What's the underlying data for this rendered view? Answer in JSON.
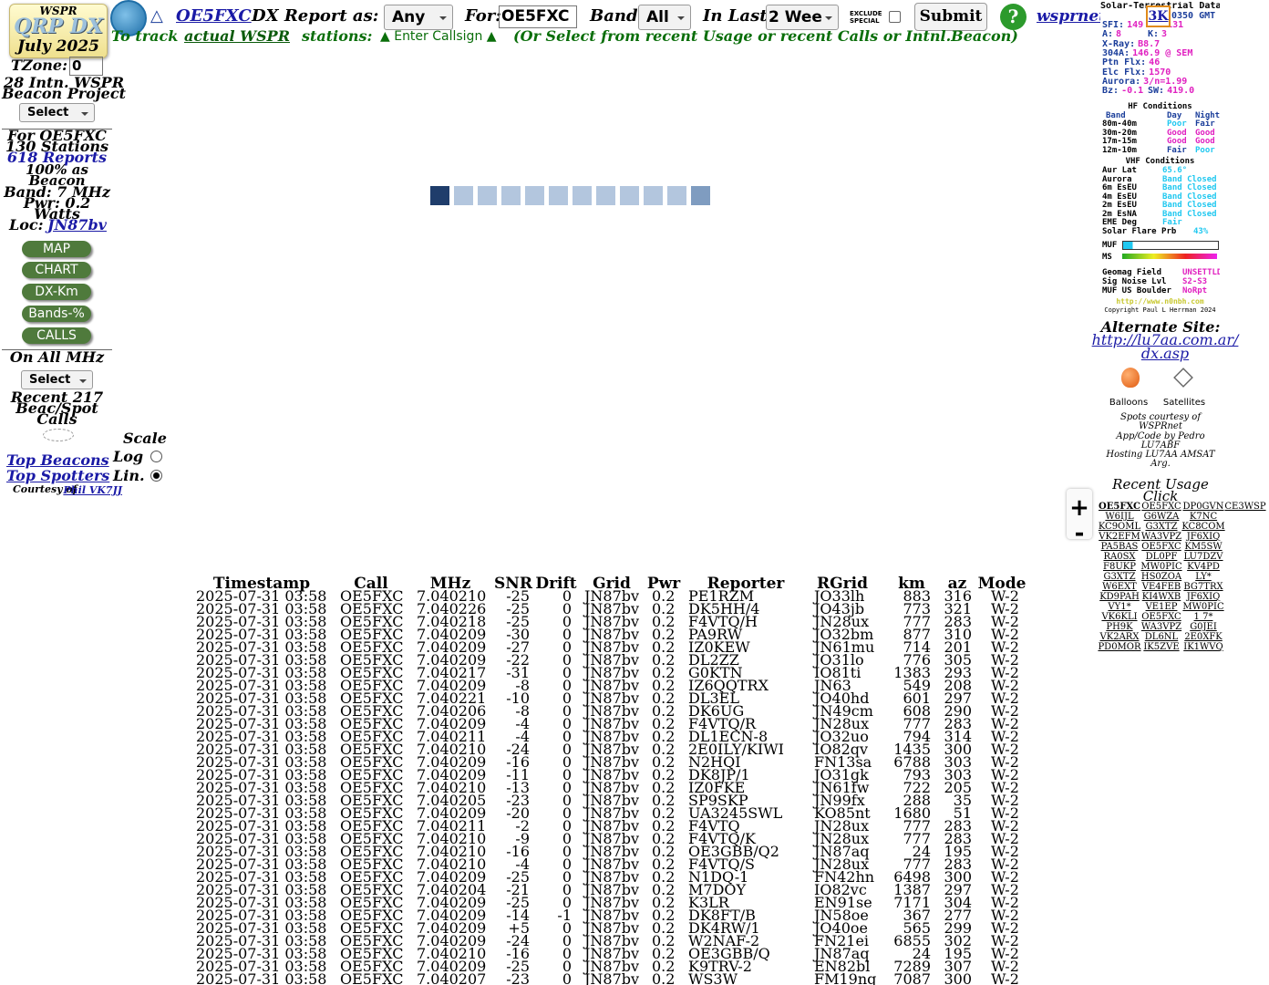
{
  "header": {
    "logo": {
      "top": "WSPR",
      "title": "QRP DX",
      "date": "July 2025"
    },
    "triangle": "△",
    "call_link": "OE5FXC",
    "report_label": "DX Report as:",
    "report_select": "Any",
    "for_label": "For:",
    "for_input": "OE5FXC",
    "band_label": "Band:",
    "band_select": "All",
    "last_label": "In Last:",
    "last_select": "2 Wee",
    "exclude_label": "EXCLUDE SPECIAL",
    "submit": "Submit",
    "help": "?",
    "site_link": "wsprnet.org",
    "badge": "3K"
  },
  "subheader": {
    "lead": "To track",
    "link": "actual WSPR",
    "stations": "stations:",
    "hint": "▲ Enter Callsign ▲",
    "note": "(Or Select from recent Usage or recent Calls or Intnl.Beacon)"
  },
  "sidebar": {
    "tzone_label": "TZone:",
    "tzone_value": "0",
    "beacon_project": "28 Intn. WSPR Beacon Project",
    "select1": "Select",
    "for_call": "For OE5FXC",
    "stations": "130 Stations",
    "reports": "618 Reports",
    "beacon_pct": "100% as Beacon",
    "band": "Band: 7 MHz",
    "pwr": "Pwr: 0.2 Watts",
    "loc_label": "Loc:",
    "loc_link": "JN87bv",
    "buttons": [
      "MAP",
      "CHART",
      "DX-Km",
      "Bands-%",
      "CALLS"
    ],
    "all_mhz": "On All MHz",
    "select2": "Select",
    "recent_calls": "Recent 217 Beac/Spot Calls",
    "scale": "Scale",
    "log": "Log",
    "lin": "Lin.",
    "top_beacons": "Top Beacons",
    "top_spotters": "Top Spotters",
    "courtesy": "Courtesy of",
    "courtesy_link": "Phil VK7JJ"
  },
  "solar": {
    "title": "Solar-Terrestrial Data",
    "time": "0350 GMT",
    "values": [
      [
        "SFI:",
        "149"
      ],
      [
        "SN:",
        "131"
      ],
      [
        "A:",
        "8"
      ],
      [
        "K:",
        "3"
      ],
      [
        "X-Ray:",
        "B8.7"
      ],
      [
        "304A:",
        "146.9 @ SEM"
      ],
      [
        "Ptn Flx:",
        "46"
      ],
      [
        "Elc Flx:",
        "1570"
      ],
      [
        "Aurora:",
        "3/n=1.99"
      ],
      [
        "Bz:",
        "-0.1"
      ],
      [
        "SW:",
        "419.0"
      ]
    ],
    "hf_title": "HF Conditions",
    "hf_header": [
      "Band",
      "Day",
      "Night"
    ],
    "hf_rows": [
      [
        "80m-40m",
        "Poor",
        "Fair"
      ],
      [
        "30m-20m",
        "Good",
        "Good"
      ],
      [
        "17m-15m",
        "Good",
        "Good"
      ],
      [
        "12m-10m",
        "Fair",
        "Poor"
      ]
    ],
    "vhf_title": "VHF Conditions",
    "vhf_rows": [
      [
        "Aur Lat",
        "65.6°"
      ],
      [
        "Aurora",
        "Band Closed"
      ],
      [
        "6m EsEU",
        "Band Closed"
      ],
      [
        "4m EsEU",
        "Band Closed"
      ],
      [
        "2m EsEU",
        "Band Closed"
      ],
      [
        "2m EsNA",
        "Band Closed"
      ],
      [
        "EME Deg",
        "Fair"
      ],
      [
        "Solar Flare Prb",
        "43%"
      ]
    ],
    "muf": "MUF",
    "ms": "MS",
    "geo_rows": [
      [
        "Geomag Field",
        "UNSETTLD"
      ],
      [
        "Sig Noise Lvl",
        "S2-S3"
      ],
      [
        "MUF US Boulder",
        "NoRpt"
      ]
    ],
    "url": "http://www.n0nbh.com",
    "copyright": "Copyright Paul L Herrman 2024"
  },
  "right": {
    "alternate": "Alternate Site:",
    "alt_link": "http://lu7aa.com.ar/dx.asp",
    "balloons": "Balloons",
    "satellites": "Satellites",
    "credits": [
      "Spots courtesy of WSPRnet",
      "App/Code by Pedro LU7ABF",
      "Hosting LU7AA AMSAT Arg."
    ],
    "recent_usage": "Recent Usage",
    "click": "Click",
    "usage": [
      [
        "OE5FXC",
        "OE5FXC",
        "DP0GVN",
        "CE3WSP"
      ],
      [
        "W6IJL",
        "G6WZA",
        "K7NC"
      ],
      [
        "KC9OML",
        "G3XTZ",
        "KC8COM"
      ],
      [
        "VK2EFM",
        "WA3VPZ",
        "JF6XIQ"
      ],
      [
        "PA5BAS",
        "OE5FXC",
        "KM5SW"
      ],
      [
        "RA0SX",
        "DL0PF",
        "LU7DZV"
      ],
      [
        "F8UKP",
        "MW0PIC",
        "KV4PD"
      ],
      [
        "G3XTZ",
        "HS0ZOA",
        "LY*"
      ],
      [
        "W6EXT",
        "VE4FEB",
        "BG7TRX"
      ],
      [
        "KD9PAH",
        "KI4WXB",
        "JF6XIQ"
      ],
      [
        "VY1*",
        "VE1EP",
        "MW0PIC"
      ],
      [
        "VK6KLI",
        "OE5FXC",
        "1 7*"
      ],
      [
        "PH9K",
        "WA3VPZ",
        "G0JEI"
      ],
      [
        "VK2ARX",
        "DL6NL",
        "2E0XFK"
      ],
      [
        "PD0MOR",
        "IK5ZVE",
        "IK1WVQ"
      ]
    ]
  },
  "zoom": {
    "in": "+",
    "out": "-"
  },
  "table": {
    "columns": [
      "Timestamp",
      "Call",
      "MHz",
      "SNR",
      "Drift",
      "Grid",
      "Pwr",
      "Reporter",
      "RGrid",
      "km",
      "az",
      "Mode"
    ],
    "rows": [
      [
        "2025-07-31 03:58",
        "OE5FXC",
        "7.040210",
        "-25",
        "0",
        "JN87bv",
        "0.2",
        "PE1RZM",
        "JO33lh",
        "883",
        "316",
        "W-2"
      ],
      [
        "2025-07-31 03:58",
        "OE5FXC",
        "7.040226",
        "-25",
        "0",
        "JN87bv",
        "0.2",
        "DK5HH/4",
        "JO43jb",
        "773",
        "321",
        "W-2"
      ],
      [
        "2025-07-31 03:58",
        "OE5FXC",
        "7.040218",
        "-25",
        "0",
        "JN87bv",
        "0.2",
        "F4VTQ/H",
        "JN28ux",
        "777",
        "283",
        "W-2"
      ],
      [
        "2025-07-31 03:58",
        "OE5FXC",
        "7.040209",
        "-30",
        "0",
        "JN87bv",
        "0.2",
        "PA9RW",
        "JO32bm",
        "877",
        "310",
        "W-2"
      ],
      [
        "2025-07-31 03:58",
        "OE5FXC",
        "7.040209",
        "-27",
        "0",
        "JN87bv",
        "0.2",
        "IZ0KEW",
        "JN61mu",
        "714",
        "201",
        "W-2"
      ],
      [
        "2025-07-31 03:58",
        "OE5FXC",
        "7.040209",
        "-22",
        "0",
        "JN87bv",
        "0.2",
        "DL2ZZ",
        "JO31lo",
        "776",
        "305",
        "W-2"
      ],
      [
        "2025-07-31 03:58",
        "OE5FXC",
        "7.040217",
        "-31",
        "0",
        "JN87bv",
        "0.2",
        "G0KTN",
        "IO81ti",
        "1383",
        "293",
        "W-2"
      ],
      [
        "2025-07-31 03:58",
        "OE5FXC",
        "7.040209",
        "-8",
        "0",
        "JN87bv",
        "0.2",
        "IZ6QQTRX",
        "JN63",
        "549",
        "208",
        "W-2"
      ],
      [
        "2025-07-31 03:58",
        "OE5FXC",
        "7.040221",
        "-10",
        "0",
        "JN87bv",
        "0.2",
        "DL3EL",
        "JO40hd",
        "601",
        "297",
        "W-2"
      ],
      [
        "2025-07-31 03:58",
        "OE5FXC",
        "7.040206",
        "-8",
        "0",
        "JN87bv",
        "0.2",
        "DK6UG",
        "JN49cm",
        "608",
        "290",
        "W-2"
      ],
      [
        "2025-07-31 03:58",
        "OE5FXC",
        "7.040209",
        "-4",
        "0",
        "JN87bv",
        "0.2",
        "F4VTQ/R",
        "JN28ux",
        "777",
        "283",
        "W-2"
      ],
      [
        "2025-07-31 03:58",
        "OE5FXC",
        "7.040211",
        "-4",
        "0",
        "JN87bv",
        "0.2",
        "DL1ECN-8",
        "JO32uo",
        "794",
        "314",
        "W-2"
      ],
      [
        "2025-07-31 03:58",
        "OE5FXC",
        "7.040210",
        "-24",
        "0",
        "JN87bv",
        "0.2",
        "2E0ILY/KIWI",
        "IO82qv",
        "1435",
        "300",
        "W-2"
      ],
      [
        "2025-07-31 03:58",
        "OE5FXC",
        "7.040209",
        "-16",
        "0",
        "JN87bv",
        "0.2",
        "N2HQI",
        "FN13sa",
        "6788",
        "303",
        "W-2"
      ],
      [
        "2025-07-31 03:58",
        "OE5FXC",
        "7.040209",
        "-11",
        "0",
        "JN87bv",
        "0.2",
        "DK8JP/1",
        "JO31gk",
        "793",
        "303",
        "W-2"
      ],
      [
        "2025-07-31 03:58",
        "OE5FXC",
        "7.040210",
        "-13",
        "0",
        "JN87bv",
        "0.2",
        "IZ0FKE",
        "JN61fw",
        "722",
        "205",
        "W-2"
      ],
      [
        "2025-07-31 03:58",
        "OE5FXC",
        "7.040205",
        "-23",
        "0",
        "JN87bv",
        "0.2",
        "SP9SKP",
        "JN99fx",
        "288",
        "35",
        "W-2"
      ],
      [
        "2025-07-31 03:58",
        "OE5FXC",
        "7.040209",
        "-20",
        "0",
        "JN87bv",
        "0.2",
        "UA3245SWL",
        "KO85nt",
        "1680",
        "51",
        "W-2"
      ],
      [
        "2025-07-31 03:58",
        "OE5FXC",
        "7.040211",
        "-2",
        "0",
        "JN87bv",
        "0.2",
        "F4VTQ",
        "JN28ux",
        "777",
        "283",
        "W-2"
      ],
      [
        "2025-07-31 03:58",
        "OE5FXC",
        "7.040210",
        "-9",
        "0",
        "JN87bv",
        "0.2",
        "F4VTQ/K",
        "JN28ux",
        "777",
        "283",
        "W-2"
      ],
      [
        "2025-07-31 03:58",
        "OE5FXC",
        "7.040210",
        "-16",
        "0",
        "JN87bv",
        "0.2",
        "OE3GBB/Q2",
        "JN87aq",
        "24",
        "195",
        "W-2"
      ],
      [
        "2025-07-31 03:58",
        "OE5FXC",
        "7.040210",
        "-4",
        "0",
        "JN87bv",
        "0.2",
        "F4VTQ/S",
        "JN28ux",
        "777",
        "283",
        "W-2"
      ],
      [
        "2025-07-31 03:58",
        "OE5FXC",
        "7.040209",
        "-25",
        "0",
        "JN87bv",
        "0.2",
        "N1DQ-1",
        "FN42hn",
        "6498",
        "300",
        "W-2"
      ],
      [
        "2025-07-31 03:58",
        "OE5FXC",
        "7.040204",
        "-21",
        "0",
        "JN87bv",
        "0.2",
        "M7DOY",
        "IO82vc",
        "1387",
        "297",
        "W-2"
      ],
      [
        "2025-07-31 03:58",
        "OE5FXC",
        "7.040209",
        "-25",
        "0",
        "JN87bv",
        "0.2",
        "K3LR",
        "EN91se",
        "7171",
        "304",
        "W-2"
      ],
      [
        "2025-07-31 03:58",
        "OE5FXC",
        "7.040209",
        "-14",
        "-1",
        "JN87bv",
        "0.2",
        "DK8FT/B",
        "JN58oe",
        "367",
        "277",
        "W-2"
      ],
      [
        "2025-07-31 03:58",
        "OE5FXC",
        "7.040209",
        "+5",
        "0",
        "JN87bv",
        "0.2",
        "DK4RW/1",
        "JO40oe",
        "565",
        "299",
        "W-2"
      ],
      [
        "2025-07-31 03:58",
        "OE5FXC",
        "7.040209",
        "-24",
        "0",
        "JN87bv",
        "0.2",
        "W2NAF-2",
        "FN21ei",
        "6855",
        "302",
        "W-2"
      ],
      [
        "2025-07-31 03:58",
        "OE5FXC",
        "7.040210",
        "-16",
        "0",
        "JN87bv",
        "0.2",
        "OE3GBB/Q",
        "JN87aq",
        "24",
        "195",
        "W-2"
      ],
      [
        "2025-07-31 03:58",
        "OE5FXC",
        "7.040209",
        "-25",
        "0",
        "JN87bv",
        "0.2",
        "K9TRV-2",
        "EN82bl",
        "7289",
        "307",
        "W-2"
      ],
      [
        "2025-07-31 03:58",
        "OE5FXC",
        "7.040207",
        "-23",
        "0",
        "JN87bv",
        "0.2",
        "WS3W",
        "FM19nq",
        "7087",
        "300",
        "W-2"
      ]
    ]
  }
}
